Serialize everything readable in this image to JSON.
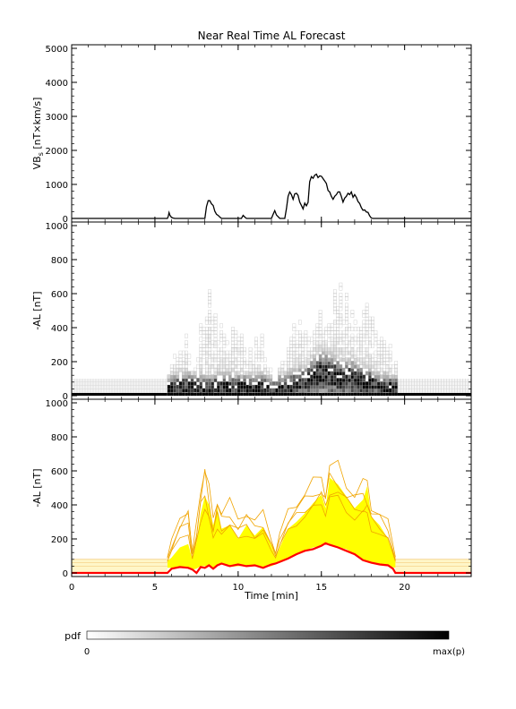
{
  "title": "Near Real Time AL Forecast",
  "chart_data": [
    {
      "panel": "vbs",
      "type": "line",
      "title": "Near Real Time AL Forecast",
      "ylabel_main": "VB",
      "ylabel_sub": "s",
      "ylabel_rest": " [nT×km/s]",
      "ylim": [
        0,
        5000
      ],
      "yticks": [
        0,
        1000,
        2000,
        3000,
        4000,
        5000
      ],
      "xlim": [
        0,
        24
      ],
      "series": [
        {
          "color": "#000000",
          "x": [
            0,
            5.75,
            5.8,
            5.85,
            5.9,
            5.95,
            6.0,
            6.1,
            6.2,
            8.0,
            8.1,
            8.2,
            8.3,
            8.4,
            8.5,
            8.6,
            8.7,
            8.8,
            8.9,
            9.0,
            10.2,
            10.3,
            10.4,
            10.5,
            12.0,
            12.1,
            12.2,
            12.3,
            12.5,
            12.8,
            12.9,
            13.0,
            13.1,
            13.2,
            13.3,
            13.4,
            13.5,
            13.6,
            13.7,
            13.8,
            13.9,
            14.0,
            14.1,
            14.2,
            14.3,
            14.4,
            14.5,
            14.6,
            14.7,
            14.8,
            14.9,
            15.0,
            15.1,
            15.2,
            15.3,
            15.4,
            15.5,
            15.6,
            15.7,
            15.8,
            15.9,
            16.0,
            16.1,
            16.2,
            16.3,
            16.4,
            16.5,
            16.6,
            16.7,
            16.8,
            16.9,
            17.0,
            17.1,
            17.2,
            17.3,
            17.4,
            17.5,
            17.6,
            17.7,
            17.8,
            17.9,
            18.0,
            18.1,
            24
          ],
          "y": [
            0,
            0,
            60,
            170,
            100,
            60,
            30,
            10,
            0,
            0,
            350,
            520,
            520,
            430,
            380,
            210,
            120,
            90,
            40,
            0,
            0,
            90,
            40,
            0,
            0,
            120,
            230,
            100,
            0,
            0,
            280,
            650,
            780,
            700,
            560,
            720,
            740,
            680,
            480,
            380,
            280,
            450,
            370,
            470,
            1080,
            1230,
            1180,
            1270,
            1300,
            1200,
            1250,
            1240,
            1170,
            1100,
            1030,
            820,
            780,
            650,
            560,
            650,
            700,
            780,
            780,
            650,
            480,
            600,
            650,
            740,
            700,
            780,
            620,
            700,
            620,
            500,
            440,
            320,
            240,
            250,
            190,
            180,
            80,
            10,
            0,
            0
          ]
        }
      ]
    },
    {
      "panel": "al-pdf",
      "type": "heatmap",
      "ylabel": "-AL [nT]",
      "ylim": [
        0,
        1000
      ],
      "yticks": [
        0,
        200,
        400,
        600,
        800,
        1000
      ],
      "xlim": [
        0,
        24
      ],
      "quiet_band": {
        "x_ranges": [
          [
            0,
            5.75
          ],
          [
            19.45,
            24
          ]
        ],
        "value_range": [
          0,
          100
        ]
      },
      "active_range": [
        5.75,
        19.45
      ],
      "columns": {
        "x": [
          5.75,
          6.25,
          6.75,
          7.25,
          7.75,
          8.25,
          8.75,
          9.25,
          9.75,
          10.25,
          10.75,
          11.25,
          11.75,
          12.25,
          12.75,
          13.25,
          13.75,
          14.25,
          14.75,
          15.25,
          15.75,
          16.25,
          16.75,
          17.25,
          17.75,
          18.25,
          18.75,
          19.25
        ],
        "peak": [
          180,
          300,
          330,
          90,
          430,
          640,
          400,
          310,
          420,
          320,
          240,
          360,
          180,
          100,
          260,
          380,
          450,
          390,
          470,
          520,
          620,
          600,
          470,
          400,
          520,
          440,
          380,
          180
        ],
        "level": [
          30,
          40,
          40,
          40,
          35,
          30,
          40,
          40,
          35,
          40,
          40,
          40,
          30,
          40,
          40,
          50,
          60,
          80,
          120,
          110,
          100,
          80,
          90,
          70,
          60,
          40,
          40,
          30
        ]
      }
    },
    {
      "panel": "al-envelope",
      "type": "area",
      "ylabel": "-AL [nT]",
      "xlabel": "Time [min]",
      "ylim": [
        0,
        1000
      ],
      "yticks": [
        0,
        200,
        400,
        600,
        800,
        1000
      ],
      "xlim": [
        0,
        24
      ],
      "xticks": [
        0,
        5,
        10,
        15,
        20
      ],
      "quiet_band": {
        "x_ranges": [
          [
            0,
            5.75
          ],
          [
            19.45,
            24
          ]
        ],
        "value_range": [
          0,
          80
        ]
      },
      "band": {
        "color": "#ffff00",
        "x": [
          5.75,
          6.0,
          6.5,
          7.0,
          7.25,
          7.5,
          7.75,
          8.0,
          8.25,
          8.5,
          8.75,
          9.0,
          9.5,
          10.0,
          10.5,
          11.0,
          11.5,
          12.0,
          12.25,
          12.5,
          13.0,
          13.5,
          14.0,
          14.5,
          15.0,
          15.25,
          15.5,
          16.0,
          16.5,
          17.0,
          17.5,
          17.75,
          18.0,
          18.5,
          19.0,
          19.45
        ],
        "lower": [
          30,
          30,
          35,
          30,
          20,
          25,
          40,
          40,
          40,
          30,
          40,
          50,
          35,
          40,
          40,
          40,
          30,
          40,
          50,
          60,
          80,
          110,
          130,
          150,
          160,
          180,
          170,
          150,
          140,
          110,
          80,
          70,
          60,
          50,
          40,
          30
        ],
        "upper": [
          70,
          90,
          150,
          170,
          80,
          180,
          350,
          450,
          400,
          280,
          380,
          260,
          280,
          200,
          280,
          220,
          270,
          160,
          90,
          150,
          260,
          300,
          350,
          410,
          460,
          380,
          560,
          520,
          450,
          380,
          430,
          510,
          330,
          280,
          200,
          70
        ]
      },
      "envelopes": {
        "color": "#f0a400",
        "x": [
          5.75,
          6.0,
          6.5,
          7.0,
          7.25,
          7.5,
          7.75,
          8.0,
          8.25,
          8.5,
          8.75,
          9.0,
          9.5,
          10.0,
          10.5,
          11.0,
          11.5,
          12.0,
          12.25,
          12.5,
          13.0,
          13.5,
          14.0,
          14.5,
          15.0,
          15.25,
          15.5,
          16.0,
          16.5,
          17.0,
          17.5,
          17.75,
          18.0,
          18.5,
          19.0,
          19.45
        ],
        "peak": [
          90,
          180,
          330,
          390,
          120,
          280,
          510,
          640,
          480,
          310,
          450,
          350,
          400,
          320,
          370,
          300,
          340,
          200,
          120,
          220,
          360,
          420,
          470,
          520,
          560,
          470,
          620,
          610,
          520,
          480,
          520,
          510,
          400,
          360,
          290,
          90
        ]
      },
      "series": [
        {
          "color": "#ff0000",
          "x": [
            0,
            5.75,
            6.0,
            6.5,
            7.0,
            7.25,
            7.5,
            7.75,
            8.0,
            8.25,
            8.5,
            8.75,
            9.0,
            9.5,
            10.0,
            10.5,
            11.0,
            11.5,
            12.0,
            12.25,
            12.5,
            13.0,
            13.5,
            14.0,
            14.5,
            15.0,
            15.25,
            15.5,
            16.0,
            16.5,
            17.0,
            17.5,
            18.0,
            18.5,
            19.0,
            19.3,
            19.45,
            24
          ],
          "y": [
            0,
            0,
            25,
            35,
            30,
            20,
            0,
            35,
            30,
            45,
            25,
            45,
            55,
            40,
            50,
            40,
            45,
            30,
            50,
            55,
            65,
            85,
            110,
            130,
            140,
            160,
            175,
            165,
            150,
            130,
            110,
            75,
            60,
            50,
            45,
            25,
            0,
            0
          ]
        }
      ]
    }
  ],
  "colorbar": {
    "label": "pdf",
    "min_label": "0",
    "max_label": "max(p)",
    "color_from": "#ffffff",
    "color_to": "#000000"
  }
}
